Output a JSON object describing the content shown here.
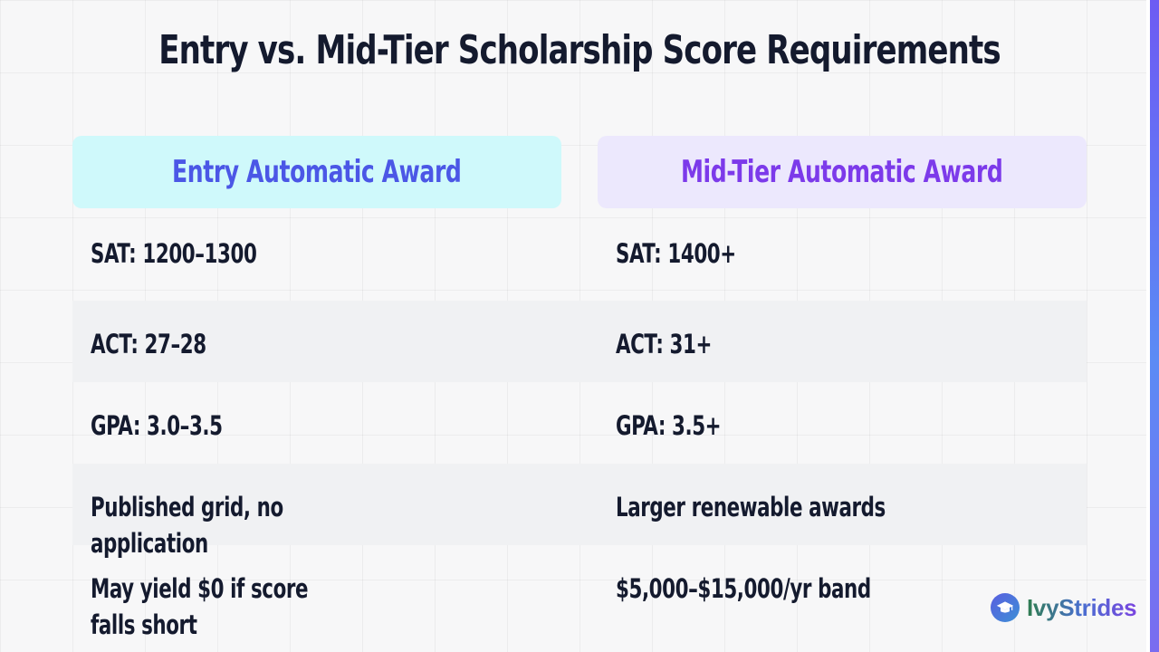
{
  "title": "Entry vs. Mid-Tier Scholarship Score Requirements",
  "columns": [
    {
      "heading": "Entry Automatic Award",
      "accent": "#4b57e6",
      "background": "#cff9fb"
    },
    {
      "heading": "Mid-Tier Automatic Award",
      "accent": "#7c3aea",
      "background": "#ece8fd"
    }
  ],
  "rows": [
    {
      "left": "SAT: 1200–1300",
      "right": "SAT: 1400+"
    },
    {
      "left": "ACT: 27–28",
      "right": "ACT: 31+"
    },
    {
      "left": "GPA: 3.0–3.5",
      "right": "GPA: 3.5+"
    },
    {
      "left": "Published grid, no application",
      "right": "Larger renewable awards"
    },
    {
      "left": "May yield $0 if score falls short",
      "right": "$5,000–$15,000/yr band"
    }
  ],
  "brand": {
    "name": "IvyStrides",
    "icon": "graduation-cap-icon"
  }
}
